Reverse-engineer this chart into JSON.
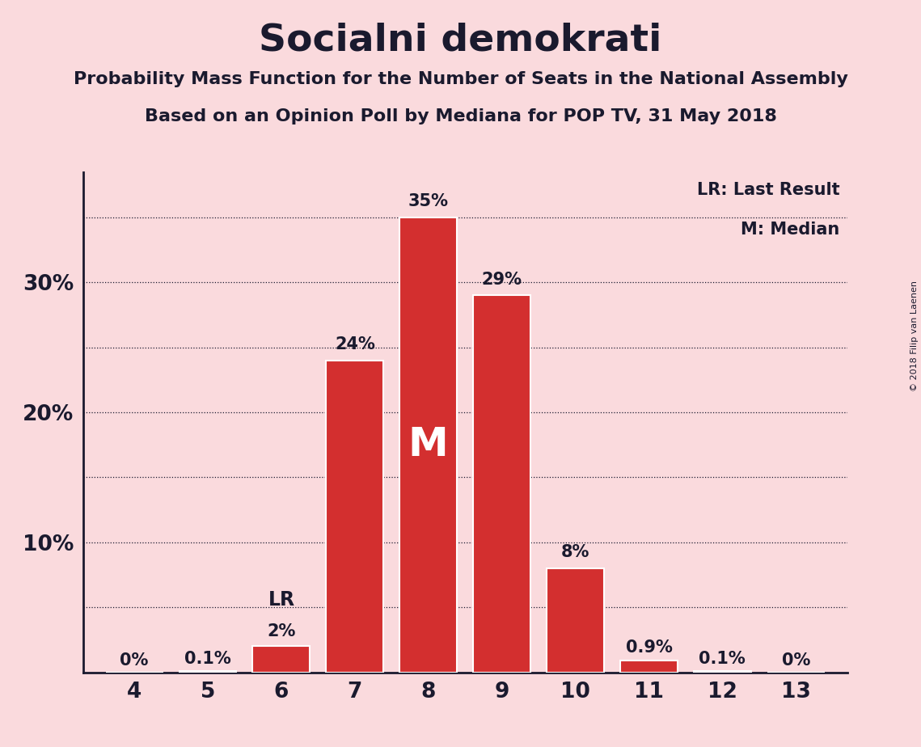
{
  "title": "Socialni demokrati",
  "subtitle1": "Probability Mass Function for the Number of Seats in the National Assembly",
  "subtitle2": "Based on an Opinion Poll by Mediana for POP TV, 31 May 2018",
  "copyright": "© 2018 Filip van Laenen",
  "categories": [
    4,
    5,
    6,
    7,
    8,
    9,
    10,
    11,
    12,
    13
  ],
  "values": [
    0.0,
    0.001,
    0.02,
    0.24,
    0.35,
    0.29,
    0.08,
    0.009,
    0.001,
    0.0
  ],
  "labels": [
    "0%",
    "0.1%",
    "2%",
    "24%",
    "35%",
    "29%",
    "8%",
    "0.9%",
    "0.1%",
    "0%"
  ],
  "label_offsets": [
    0.003,
    0.003,
    0.005,
    0.006,
    0.006,
    0.006,
    0.006,
    0.004,
    0.003,
    0.003
  ],
  "bar_color": "#d32f2f",
  "bg_color": "#fadadd",
  "text_color": "#1a1a2e",
  "median_bar": 8,
  "lr_bar": 6,
  "median_label": "M",
  "lr_label": "LR",
  "legend_lr": "LR: Last Result",
  "legend_m": "M: Median",
  "ylim": [
    0,
    0.385
  ],
  "gridlines": [
    0.05,
    0.1,
    0.15,
    0.2,
    0.25,
    0.3,
    0.35
  ],
  "ytick_vals": [
    0.1,
    0.2,
    0.3
  ],
  "ytick_labels": [
    "10%",
    "20%",
    "30%"
  ]
}
